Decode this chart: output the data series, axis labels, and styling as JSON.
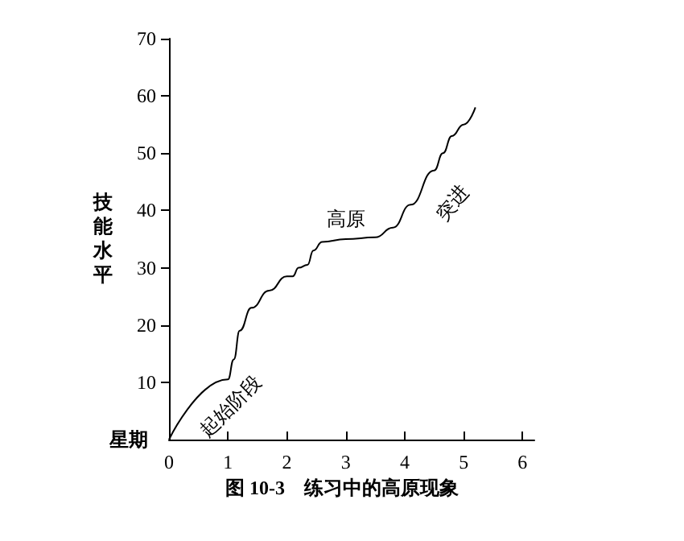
{
  "chart_data": {
    "type": "line",
    "title": "图 10-3　练习中的高原现象",
    "xlabel": "星期",
    "ylabel": "技能水平",
    "x": [
      0,
      1,
      1.1,
      1.2,
      1.4,
      1.7,
      2.0,
      2.1,
      2.2,
      2.35,
      2.45,
      2.6,
      3.0,
      3.5,
      3.8,
      4.1,
      4.5,
      4.65,
      4.8,
      5.0,
      5.2
    ],
    "series": [
      {
        "color": "#000000",
        "values": [
          0,
          10.5,
          14,
          19,
          23,
          26,
          28.5,
          28.5,
          30,
          30.5,
          33,
          34.5,
          35,
          35.3,
          37,
          41,
          47,
          50,
          53,
          55,
          58
        ]
      }
    ],
    "xlim": [
      0,
      6.2
    ],
    "xticks": [
      0,
      1,
      2,
      3,
      4,
      5,
      6
    ],
    "ylim": [
      0,
      70
    ],
    "yticks": [
      10,
      20,
      30,
      40,
      50,
      60,
      70
    ],
    "annotations": [
      "起始阶段",
      "高原",
      "突进"
    ],
    "grid": false,
    "marker": "none",
    "line_style": "solid"
  }
}
